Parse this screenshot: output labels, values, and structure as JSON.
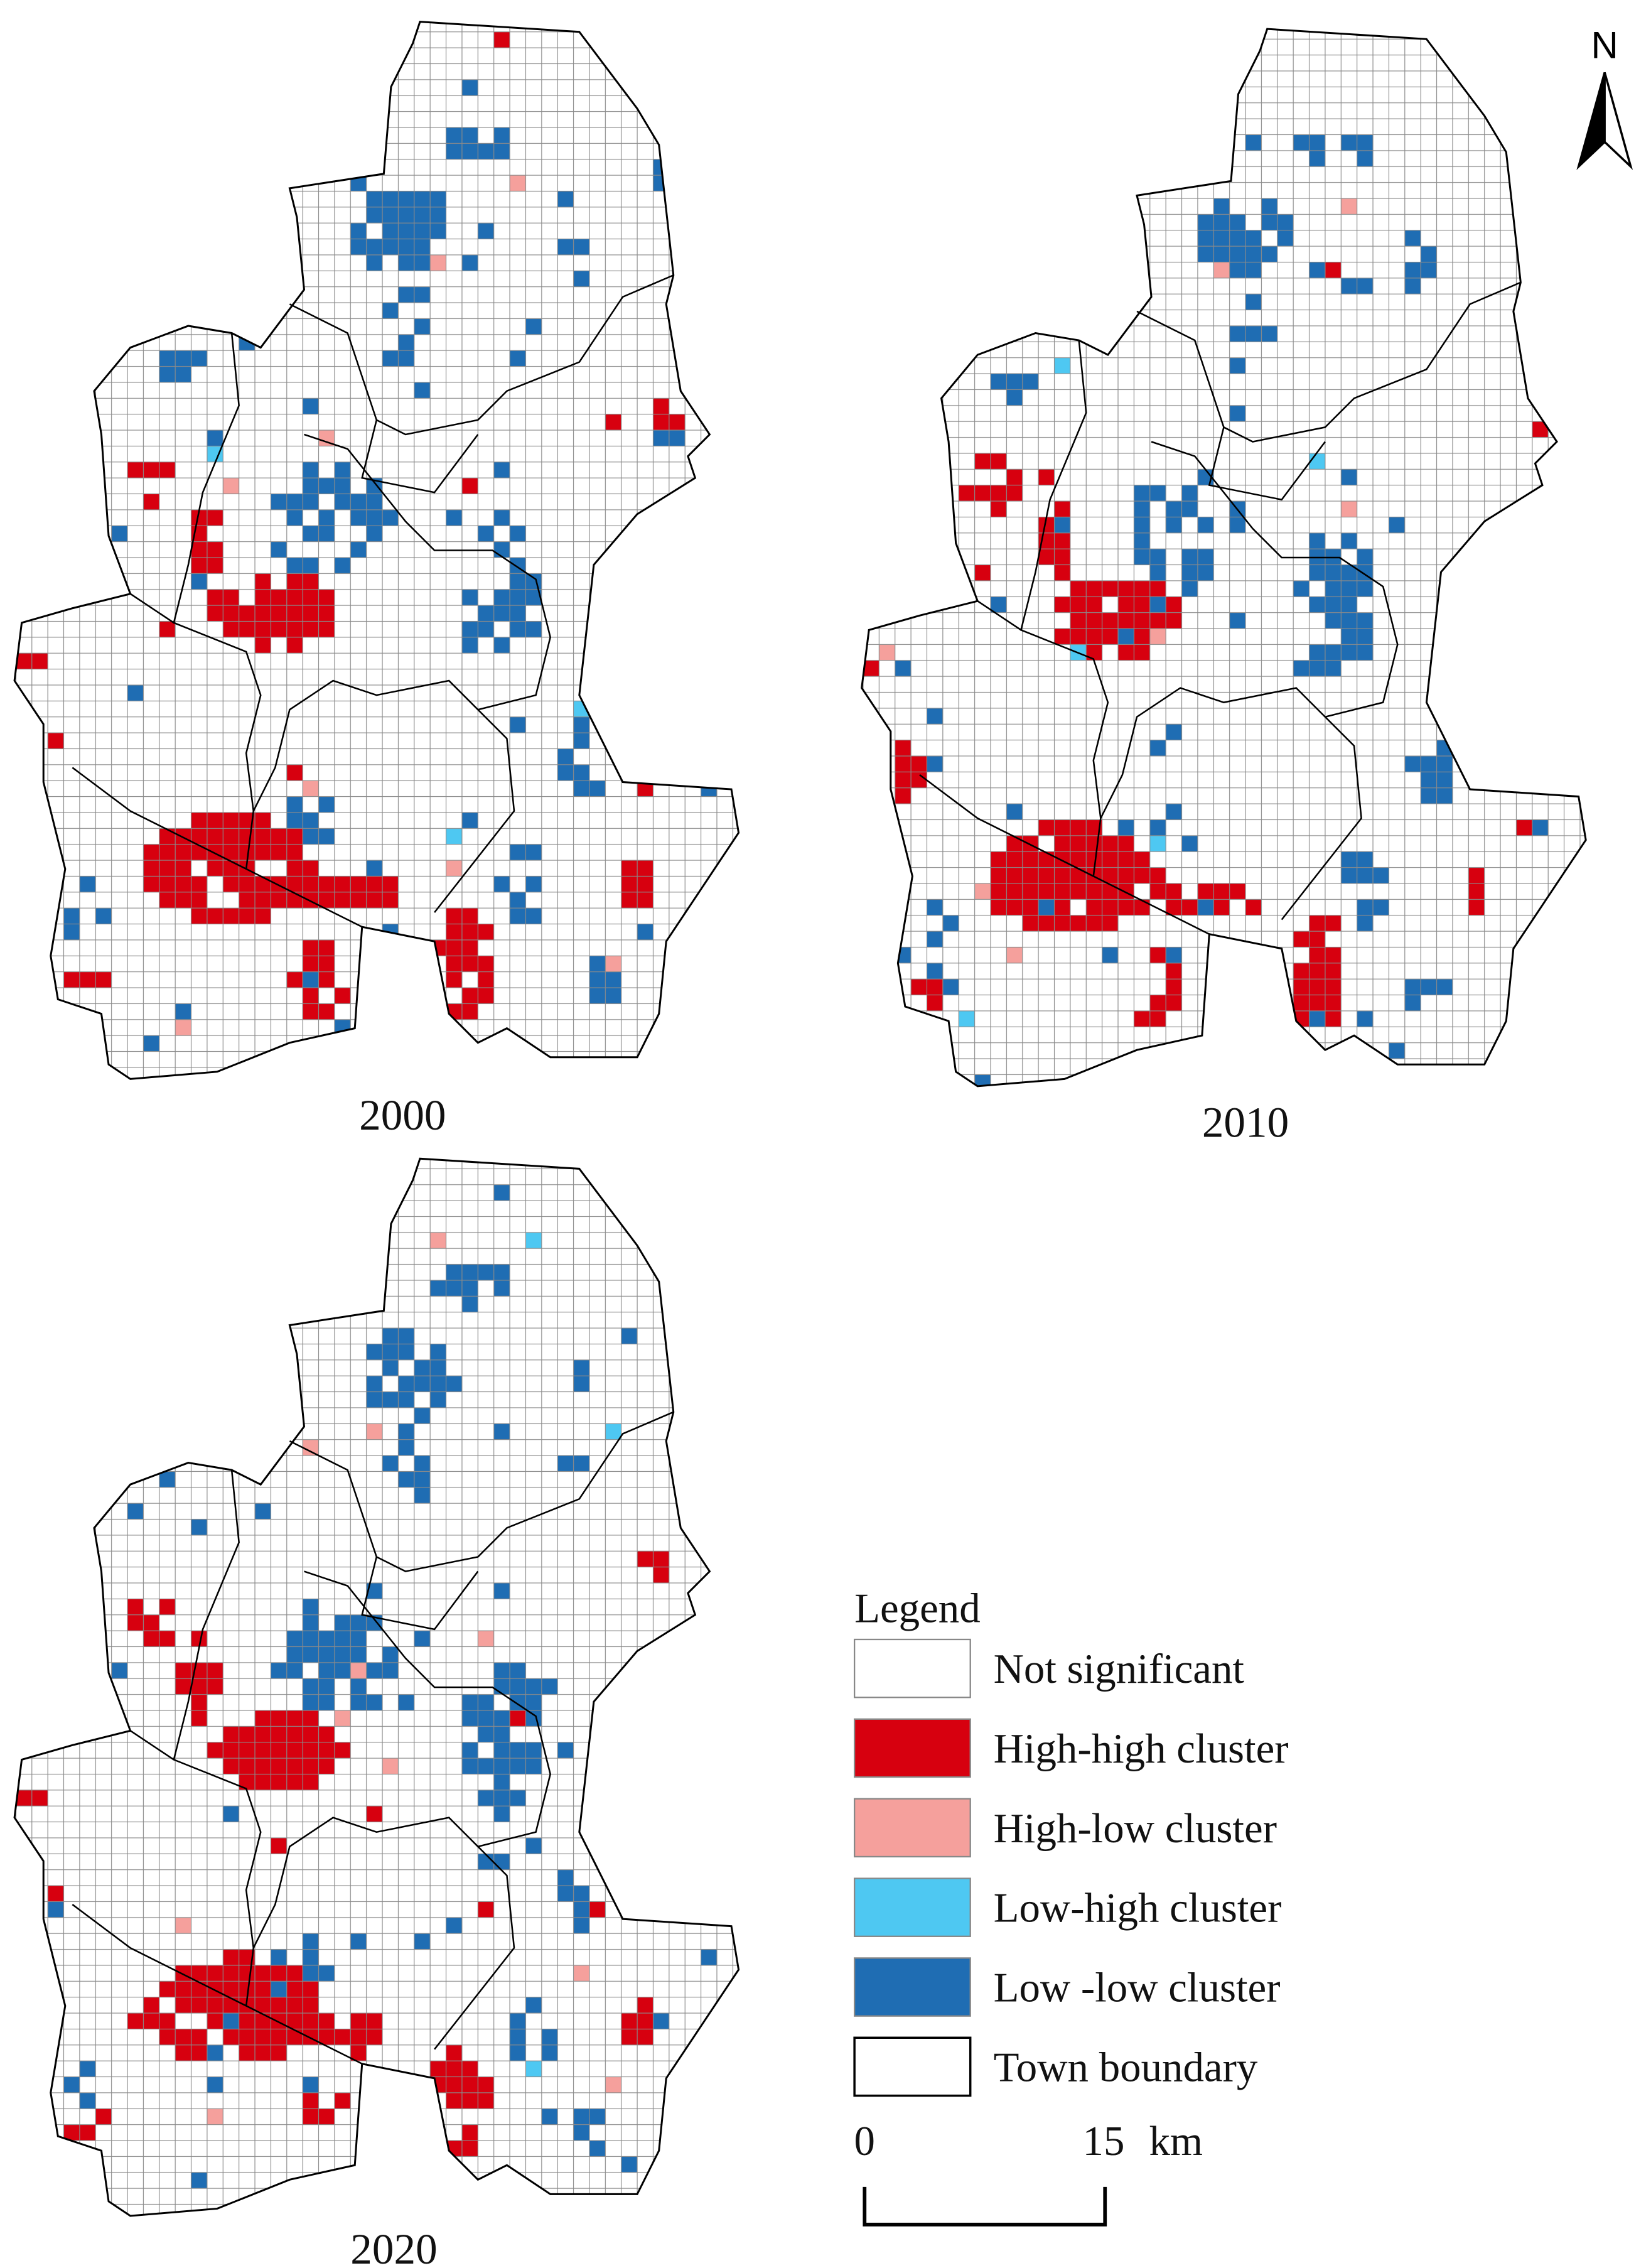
{
  "panels": [
    {
      "label": "2000"
    },
    {
      "label": "2010"
    },
    {
      "label": "2020"
    }
  ],
  "legend": {
    "title": "Legend",
    "items": [
      {
        "label": "Not significant",
        "color": "#ffffff"
      },
      {
        "label": "High-high cluster",
        "color": "#d7000f"
      },
      {
        "label": "High-low cluster",
        "color": "#f5a09c"
      },
      {
        "label": "Low-high cluster",
        "color": "#4ec8f2"
      },
      {
        "label": "Low -low cluster",
        "color": "#1f6db3"
      },
      {
        "label": "Town boundary",
        "color": "#ffffff"
      }
    ]
  },
  "scale_bar": {
    "start": "0",
    "end": "15",
    "unit": "km"
  },
  "north": "N"
}
